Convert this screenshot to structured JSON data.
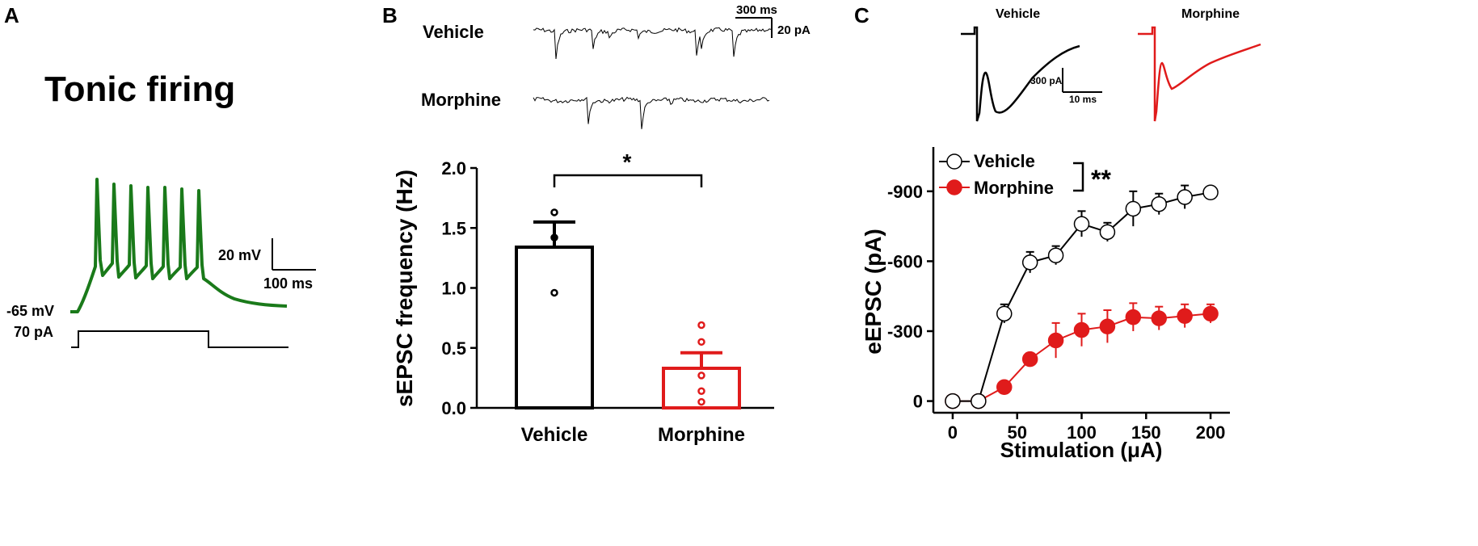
{
  "panels": {
    "a": {
      "letter": "A",
      "title": "Tonic firing",
      "resting_label": "-65 mV",
      "current_label": "70 pA",
      "scale_v": "20 mV",
      "scale_t": "100 ms",
      "trace_color": "#1a7a1a"
    },
    "b": {
      "letter": "B",
      "trace_labels": [
        "Vehicle",
        "Morphine"
      ],
      "scale_t": "300 ms",
      "scale_i": "20 pA",
      "significance": "*"
    },
    "c": {
      "letter": "C",
      "trace_labels": [
        "Vehicle",
        "Morphine"
      ],
      "scale_i": "300 pA",
      "scale_t": "10 ms",
      "significance": "**"
    }
  },
  "chart_data": [
    {
      "type": "bar",
      "panel": "B",
      "categories": [
        "Vehicle",
        "Morphine"
      ],
      "values": [
        1.34,
        0.33
      ],
      "sem": [
        0.21,
        0.13
      ],
      "points": [
        [
          1.63,
          1.42,
          0.96
        ],
        [
          0.69,
          0.55,
          0.27,
          0.14,
          0.05
        ]
      ],
      "colors": [
        "#000000",
        "#e01b1b"
      ],
      "xlabel": "",
      "ylabel": "sEPSC frequency (Hz)",
      "ylim": [
        0,
        2.0
      ],
      "yticks": [
        "0.0",
        "0.5",
        "1.0",
        "1.5",
        "2.0"
      ]
    },
    {
      "type": "line",
      "panel": "C",
      "x": [
        0,
        20,
        40,
        60,
        80,
        100,
        120,
        140,
        160,
        180,
        200
      ],
      "series": [
        {
          "name": "Vehicle",
          "values": [
            0,
            0,
            -375,
            -595,
            -625,
            -760,
            -725,
            -825,
            -845,
            -875,
            -895
          ],
          "err": [
            10,
            10,
            40,
            45,
            40,
            55,
            40,
            75,
            45,
            50,
            25
          ],
          "color": "#000000",
          "marker": "open-circle"
        },
        {
          "name": "Morphine",
          "values": [
            0,
            0,
            -60,
            -180,
            -260,
            -305,
            -320,
            -360,
            -355,
            -365,
            -375
          ],
          "err": [
            10,
            10,
            15,
            25,
            75,
            70,
            70,
            60,
            50,
            50,
            40
          ],
          "color": "#e01b1b",
          "marker": "filled-circle"
        }
      ],
      "xlabel": "Stimulation (μA)",
      "ylabel": "eEPSC (pA)",
      "xlim": [
        -15,
        215
      ],
      "ylim": [
        50,
        -1090
      ],
      "xticks": [
        "0",
        "50",
        "100",
        "150",
        "200"
      ],
      "yticks": [
        "0",
        "-300",
        "-600",
        "-900"
      ],
      "legend": "top-left"
    }
  ]
}
